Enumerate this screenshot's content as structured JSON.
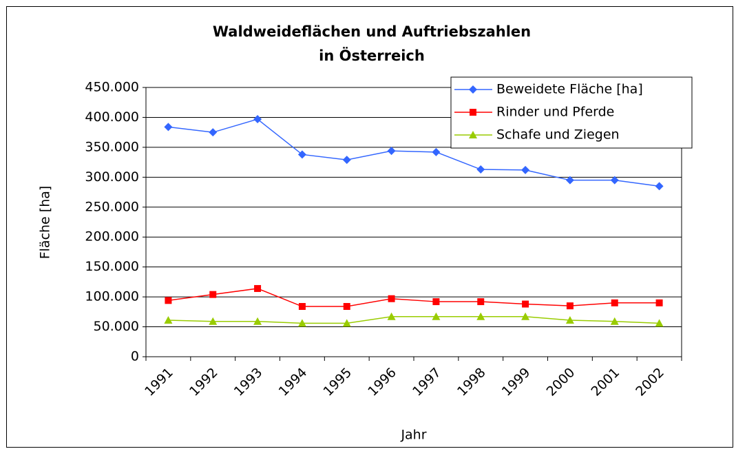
{
  "chart_data": {
    "type": "line",
    "title": [
      "Waldweideflächen und Auftriebszahlen",
      "in Österreich"
    ],
    "x_label": "Jahr",
    "y_label": "Fläche [ha]",
    "categories": [
      "1991",
      "1992",
      "1993",
      "1994",
      "1995",
      "1996",
      "1997",
      "1998",
      "1999",
      "2000",
      "2001",
      "2002"
    ],
    "series": [
      {
        "name": "Beweidete Fläche [ha]",
        "color": "#3366ff",
        "marker": "diamond",
        "values": [
          384000,
          375000,
          397000,
          338000,
          329000,
          344000,
          342000,
          313000,
          312000,
          295000,
          295000,
          285000
        ]
      },
      {
        "name": "Rinder und Pferde",
        "color": "#ff0000",
        "marker": "square",
        "values": [
          94000,
          104000,
          114000,
          84000,
          84000,
          97000,
          92000,
          92000,
          88000,
          85000,
          90000,
          90000
        ]
      },
      {
        "name": "Schafe und Ziegen",
        "color": "#99cc00",
        "marker": "triangle",
        "values": [
          61000,
          59000,
          59000,
          56000,
          56000,
          67000,
          67000,
          67000,
          67000,
          61000,
          59000,
          56000
        ]
      }
    ],
    "ylim": [
      0,
      450000
    ],
    "yticks": [
      0,
      {
        "value": 50000,
        "label": "50.000"
      },
      {
        "value": 100000,
        "label": "100.000"
      },
      {
        "value": 150000,
        "label": "150.000"
      },
      {
        "value": 200000,
        "label": "200.000"
      },
      {
        "value": 250000,
        "label": "250.000"
      },
      {
        "value": 300000,
        "label": "300.000"
      },
      {
        "value": 350000,
        "label": "350.000"
      },
      {
        "value": 400000,
        "label": "400.000"
      },
      {
        "value": 450000,
        "label": "450.000"
      }
    ],
    "grid": true,
    "legend": "top-right"
  }
}
